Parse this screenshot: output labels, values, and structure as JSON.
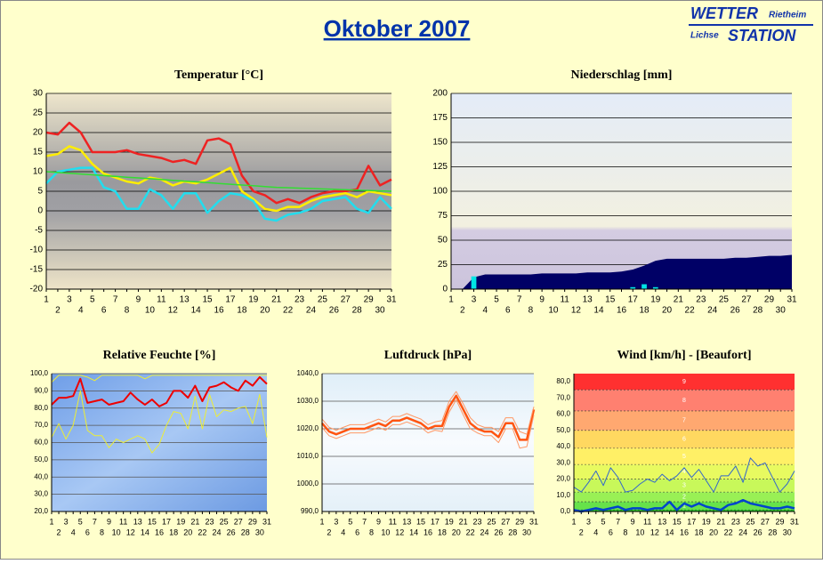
{
  "header": {
    "title": "Oktober 2007",
    "logo": {
      "wetter": "WETTER",
      "place": "Rietheim",
      "lichse": "Lichse",
      "station": "STATION"
    }
  },
  "chart_data": [
    {
      "type": "line",
      "title": "Temperatur [°C]",
      "grid": true,
      "x": [
        1,
        2,
        3,
        4,
        5,
        6,
        7,
        8,
        9,
        10,
        11,
        12,
        13,
        14,
        15,
        16,
        17,
        18,
        19,
        20,
        21,
        22,
        23,
        24,
        25,
        26,
        27,
        28,
        29,
        30,
        31
      ],
      "xlim": [
        1,
        31
      ],
      "ylim": [
        -20,
        30
      ],
      "yticks": [
        -20,
        -15,
        -10,
        -5,
        0,
        5,
        10,
        15,
        20,
        25,
        30
      ],
      "series": [
        {
          "color": "#ee2222",
          "values": [
            20,
            19.5,
            22.5,
            20,
            15,
            15,
            15,
            15.5,
            14.5,
            14,
            13.5,
            12.5,
            13,
            12,
            18,
            18.5,
            17,
            9,
            5,
            4,
            2,
            3,
            2,
            3.5,
            4.5,
            5,
            5,
            5.5,
            11.5,
            6.5,
            8
          ]
        },
        {
          "color": "#ffee00",
          "values": [
            14,
            14.5,
            16.5,
            15.5,
            12,
            9.5,
            8.5,
            7.5,
            7,
            8.5,
            8,
            6.5,
            7.5,
            7,
            8,
            9.5,
            11,
            5,
            3,
            0.5,
            0,
            1,
            1,
            2.5,
            3.5,
            4,
            4.5,
            3.5,
            5,
            4.5,
            4
          ]
        },
        {
          "color": "#22ddee",
          "values": [
            7,
            10,
            10.5,
            11,
            11,
            6,
            5,
            0.5,
            0.5,
            5.5,
            4,
            0.5,
            4.5,
            4.5,
            -0.5,
            2.5,
            4.5,
            4,
            2.5,
            -2,
            -2.5,
            -1,
            -0.5,
            0.5,
            2.5,
            3,
            3.5,
            0.5,
            -0.5,
            3.5,
            0.5
          ]
        },
        {
          "color": "#33dd33",
          "values": [
            10,
            9.8,
            9.6,
            9.4,
            9.2,
            9,
            8.8,
            8.6,
            8.4,
            8.2,
            8,
            7.8,
            7.6,
            7.4,
            7.2,
            7,
            6.8,
            6.6,
            6.4,
            6.2,
            6,
            5.9,
            5.8,
            5.7,
            5.6,
            5.5,
            5.4,
            5.3,
            5.2,
            5.1,
            5
          ]
        }
      ]
    },
    {
      "type": "bar",
      "title": "Niederschlag [mm]",
      "grid": true,
      "x": [
        1,
        2,
        3,
        4,
        5,
        6,
        7,
        8,
        9,
        10,
        11,
        12,
        13,
        14,
        15,
        16,
        17,
        18,
        19,
        20,
        21,
        22,
        23,
        24,
        25,
        26,
        27,
        28,
        29,
        30,
        31
      ],
      "xlim": [
        1,
        31
      ],
      "ylim": [
        0,
        200
      ],
      "yticks": [
        0,
        25,
        50,
        75,
        100,
        125,
        150,
        175,
        200
      ],
      "series": [
        {
          "type": "area",
          "color": "#000066",
          "values": [
            0,
            0,
            12,
            15,
            15,
            15,
            15,
            15,
            16,
            16,
            16,
            16,
            17,
            17,
            17,
            18,
            20,
            24,
            29,
            31,
            31,
            31,
            31,
            31,
            31,
            32,
            32,
            33,
            34,
            34,
            35
          ]
        },
        {
          "type": "bar",
          "color": "#00e5e5",
          "values": [
            0,
            0,
            13,
            0,
            0,
            0,
            0,
            0,
            0,
            0,
            0,
            0,
            0,
            0,
            0,
            0,
            2,
            5,
            2,
            0,
            0,
            0,
            0,
            0,
            0,
            0,
            0,
            0,
            0,
            0,
            0
          ]
        }
      ]
    },
    {
      "type": "line",
      "title": "Relative Feuchte [%]",
      "grid": true,
      "x": [
        1,
        2,
        3,
        4,
        5,
        6,
        7,
        8,
        9,
        10,
        11,
        12,
        13,
        14,
        15,
        16,
        17,
        18,
        19,
        20,
        21,
        22,
        23,
        24,
        25,
        26,
        27,
        28,
        29,
        30,
        31
      ],
      "xlim": [
        1,
        31
      ],
      "ylim": [
        20,
        100
      ],
      "yticks": [
        {
          "value": 20,
          "label": "20,0"
        },
        {
          "value": 30,
          "label": "30,0"
        },
        {
          "value": 40,
          "label": "40,0"
        },
        {
          "value": 50,
          "label": "50,0"
        },
        {
          "value": 60,
          "label": "60,0"
        },
        {
          "value": 70,
          "label": "70,0"
        },
        {
          "value": 80,
          "label": "80,0"
        },
        {
          "value": 90,
          "label": "90,0"
        },
        {
          "value": 100,
          "label": "100,0"
        }
      ],
      "series": [
        {
          "color": "#ee0000",
          "values": [
            82,
            86,
            86,
            87,
            97,
            83,
            84,
            85,
            82,
            83,
            84,
            89,
            85,
            82,
            85,
            81,
            83,
            90,
            90,
            86,
            93,
            84,
            92,
            93,
            95,
            92,
            90,
            96,
            93,
            98,
            94
          ]
        },
        {
          "color": "#eeee33",
          "values": [
            95,
            99,
            99,
            99,
            99,
            98,
            96,
            99,
            99,
            99,
            99,
            99,
            99,
            97,
            99,
            99,
            99,
            99,
            99,
            99,
            99,
            99,
            99,
            99,
            99,
            99,
            99,
            99,
            99,
            99,
            99
          ]
        },
        {
          "color": "#eeee33",
          "values": [
            63,
            71,
            62,
            70,
            90,
            67,
            64,
            64,
            57,
            62,
            60,
            62,
            64,
            62,
            54,
            59,
            70,
            78,
            77,
            68,
            87,
            68,
            88,
            75,
            79,
            78,
            80,
            81,
            71,
            88,
            63
          ]
        }
      ]
    },
    {
      "type": "line",
      "title": "Luftdruck [hPa]",
      "grid": true,
      "x": [
        1,
        2,
        3,
        4,
        5,
        6,
        7,
        8,
        9,
        10,
        11,
        12,
        13,
        14,
        15,
        16,
        17,
        18,
        19,
        20,
        21,
        22,
        23,
        24,
        25,
        26,
        27,
        28,
        29,
        30,
        31
      ],
      "xlim": [
        1,
        31
      ],
      "ylim": [
        990,
        1040
      ],
      "yticks": [
        {
          "value": 990,
          "label": "990,0"
        },
        {
          "value": 1000,
          "label": "1000,0"
        },
        {
          "value": 1010,
          "label": "1010,0"
        },
        {
          "value": 1020,
          "label": "1020,0"
        },
        {
          "value": 1030,
          "label": "1030,0"
        },
        {
          "value": 1040,
          "label": "1040,0"
        }
      ],
      "series": [
        {
          "color": "#ff5511",
          "values": [
            1022,
            1019,
            1018,
            1019,
            1020,
            1020,
            1020,
            1021,
            1022,
            1021,
            1023,
            1023,
            1024,
            1023,
            1022,
            1020,
            1021,
            1021,
            1028,
            1032,
            1027,
            1022,
            1020,
            1019,
            1019,
            1017,
            1022,
            1022,
            1016,
            1016,
            1027
          ]
        },
        {
          "color": "#ff9966",
          "values": [
            1023.5,
            1020.5,
            1019.5,
            1020.5,
            1021.5,
            1021.5,
            1021.5,
            1022.5,
            1023.5,
            1022.5,
            1024.5,
            1024.5,
            1025.5,
            1024.5,
            1023.5,
            1021.5,
            1022.5,
            1023,
            1030,
            1033.5,
            1029,
            1024,
            1021.5,
            1020.5,
            1020.5,
            1019,
            1024,
            1024,
            1019,
            1018,
            1028
          ]
        },
        {
          "color": "#ff9966",
          "values": [
            1020.5,
            1017.5,
            1016.5,
            1017.5,
            1018.5,
            1018.5,
            1018.5,
            1019.5,
            1020.5,
            1019.5,
            1021.5,
            1021.5,
            1022.5,
            1021.5,
            1020.5,
            1018.5,
            1019.5,
            1019,
            1026,
            1030.5,
            1025,
            1020,
            1018.5,
            1017.5,
            1017.5,
            1015,
            1020,
            1020,
            1013,
            1013.5,
            1025
          ]
        }
      ]
    },
    {
      "type": "line",
      "title": "Wind [km/h] - [Beaufort]",
      "grid": false,
      "x": [
        1,
        2,
        3,
        4,
        5,
        6,
        7,
        8,
        9,
        10,
        11,
        12,
        13,
        14,
        15,
        16,
        17,
        18,
        19,
        20,
        21,
        22,
        23,
        24,
        25,
        26,
        27,
        28,
        29,
        30,
        31
      ],
      "xlim": [
        1,
        31
      ],
      "ylim": [
        0,
        85
      ],
      "yticks": [
        {
          "value": 0,
          "label": "0,0"
        },
        {
          "value": 10,
          "label": "10,0"
        },
        {
          "value": 20,
          "label": "20,0"
        },
        {
          "value": 30,
          "label": "30,0"
        },
        {
          "value": 40,
          "label": "40,0"
        },
        {
          "value": 50,
          "label": "50,0"
        },
        {
          "value": 60,
          "label": "60,0"
        },
        {
          "value": 70,
          "label": "70,0"
        },
        {
          "value": 80,
          "label": "80,0"
        }
      ],
      "bands": [
        {
          "label": "1",
          "from": 1,
          "to": 6,
          "color": "#66e24a"
        },
        {
          "label": "2",
          "from": 6,
          "to": 12,
          "color": "#99f055"
        },
        {
          "label": "3",
          "from": 12,
          "to": 20,
          "color": "#c8f85a"
        },
        {
          "label": "4",
          "from": 20,
          "to": 29,
          "color": "#e8fa60"
        },
        {
          "label": "5",
          "from": 29,
          "to": 39,
          "color": "#fff066"
        },
        {
          "label": "6",
          "from": 39,
          "to": 50,
          "color": "#ffd860"
        },
        {
          "label": "7",
          "from": 50,
          "to": 62,
          "color": "#ffa870"
        },
        {
          "label": "8",
          "from": 62,
          "to": 75,
          "color": "#ff8070"
        },
        {
          "label": "9",
          "from": 75,
          "to": 88,
          "color": "#ff3030"
        }
      ],
      "series": [
        {
          "color": "#3366cc",
          "values": [
            15,
            12,
            18,
            25,
            16,
            27,
            21,
            12,
            13,
            17,
            20,
            18,
            23,
            19,
            22,
            27,
            21,
            26,
            19,
            12,
            22,
            22,
            28,
            18,
            33,
            28,
            30,
            21,
            12,
            17,
            25
          ]
        },
        {
          "color": "#0044cc",
          "values": [
            1,
            0,
            1,
            2,
            1,
            2,
            3,
            1,
            2,
            2,
            1,
            2,
            2,
            6,
            1,
            5,
            3,
            5,
            3,
            2,
            1,
            4,
            5,
            7,
            5,
            4,
            3,
            2,
            2,
            3,
            2
          ]
        }
      ]
    }
  ]
}
